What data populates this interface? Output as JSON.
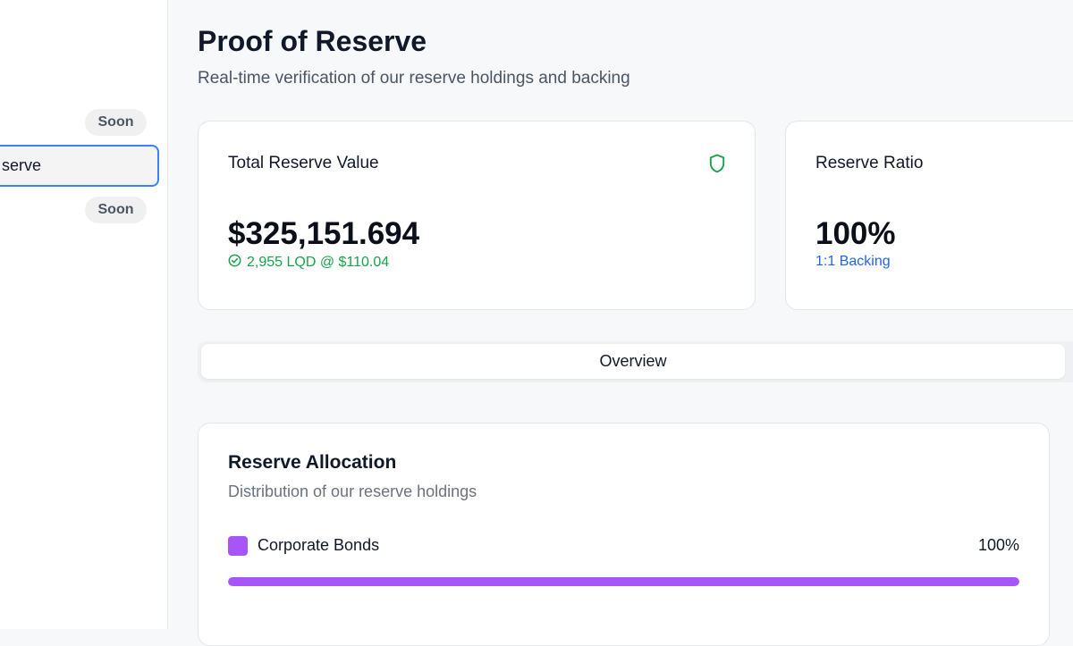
{
  "sidebar": {
    "items": [
      {
        "label": "",
        "badge": "Soon"
      },
      {
        "label": "serve",
        "active": true
      },
      {
        "label": "",
        "badge": "Soon"
      }
    ]
  },
  "header": {
    "title": "Proof of Reserve",
    "subtitle": "Real-time verification of our reserve holdings and backing"
  },
  "stats": [
    {
      "label": "Total Reserve Value",
      "value": "$325,151.694",
      "sub": "2,955 LQD @ $110.04",
      "sub_color": "#16a34a",
      "icon": "shield-icon"
    },
    {
      "label": "Reserve Ratio",
      "value": "100%",
      "sub": "1:1 Backing",
      "sub_color": "#2563eb"
    }
  ],
  "tabs": [
    {
      "label": "Overview",
      "active": true
    }
  ],
  "allocation": {
    "title": "Reserve Allocation",
    "subtitle": "Distribution of our reserve holdings",
    "items": [
      {
        "name": "Corporate Bonds",
        "percent_label": "100%",
        "percent": 100,
        "color": "#a855f7"
      }
    ]
  }
}
